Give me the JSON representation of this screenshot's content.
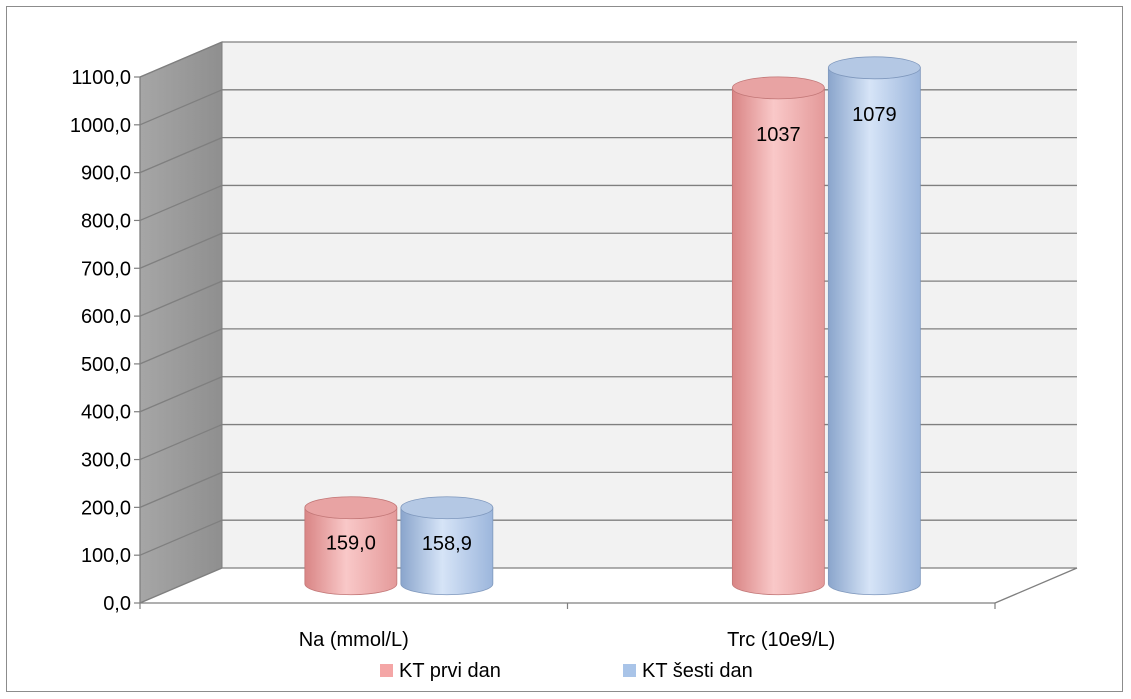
{
  "chart_data": {
    "type": "bar",
    "style": "3d-cylinder",
    "categories": [
      "Na (mmol/L)",
      "Trc (10e9/L)"
    ],
    "series": [
      {
        "name": "KT prvi dan",
        "values": [
          159.0,
          1037
        ],
        "labels": [
          "159,0",
          "1037"
        ],
        "color": "#f4a6a6"
      },
      {
        "name": "KT šesti dan",
        "values": [
          158.9,
          1079
        ],
        "labels": [
          "158,9",
          "1079"
        ],
        "color": "#a9c4e8"
      }
    ],
    "ylim": [
      0,
      1100
    ],
    "yticks": [
      "0,0",
      "100,0",
      "200,0",
      "300,0",
      "400,0",
      "500,0",
      "600,0",
      "700,0",
      "800,0",
      "900,0",
      "1000,0",
      "1100,0"
    ],
    "grid": true,
    "legend_position": "bottom"
  }
}
